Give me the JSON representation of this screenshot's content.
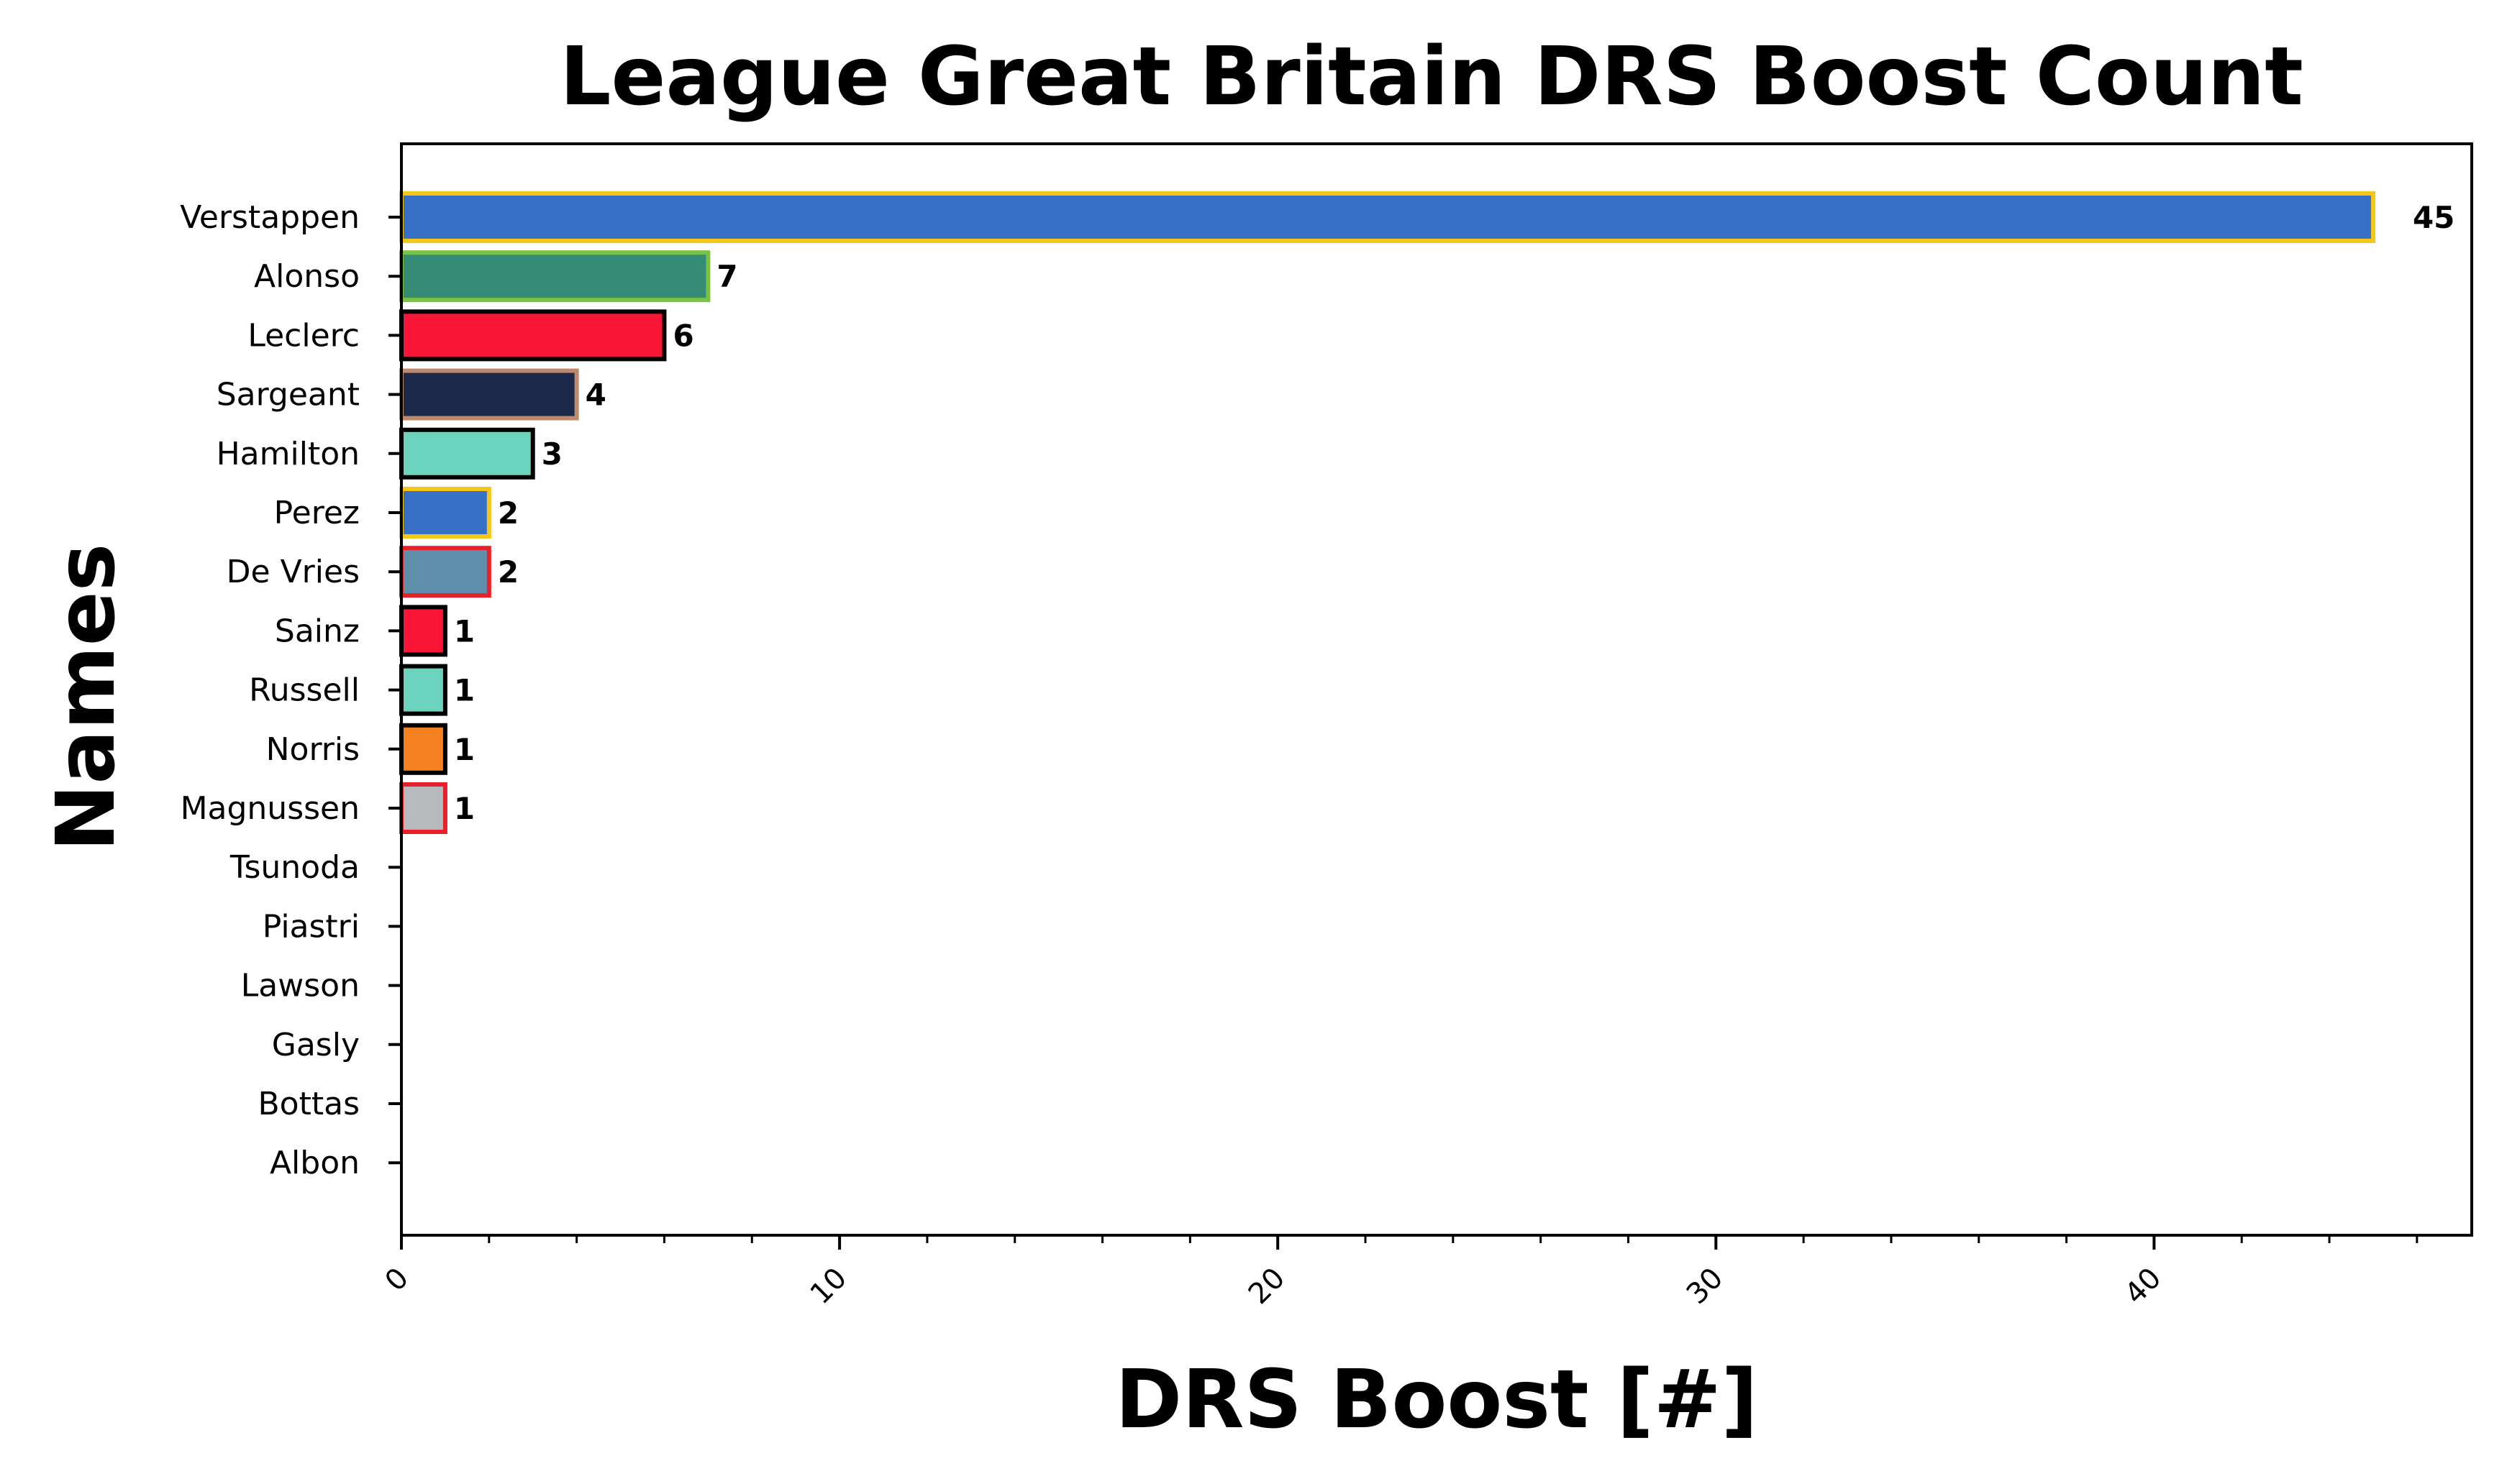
{
  "chart_data": {
    "type": "bar",
    "orientation": "horizontal",
    "title": "League Great Britain DRS Boost Count",
    "xlabel": "DRS Boost [#]",
    "ylabel": "Names",
    "xlim": [
      0,
      47.25
    ],
    "xticks": [
      "0",
      "10",
      "20",
      "30",
      "40"
    ],
    "grid": false,
    "categories": [
      "Verstappen",
      "Alonso",
      "Leclerc",
      "Sargeant",
      "Hamilton",
      "Perez",
      "De Vries",
      "Sainz",
      "Russell",
      "Norris",
      "Magnussen",
      "Tsunoda",
      "Piastri",
      "Lawson",
      "Gasly",
      "Bottas",
      "Albon"
    ],
    "values": [
      45,
      7,
      6,
      4,
      3,
      2,
      2,
      1,
      1,
      1,
      1,
      0,
      0,
      0,
      0,
      0,
      0
    ],
    "value_labels": [
      "45",
      "7",
      "6",
      "4",
      "3",
      "2",
      "2",
      "1",
      "1",
      "1",
      "1",
      "",
      "",
      "",
      "",
      "",
      ""
    ],
    "fill_colors": [
      "#3671C6",
      "#358C75",
      "#F91536",
      "#1B2A4A",
      "#6CD3BF",
      "#3671C6",
      "#5E8FAA",
      "#F91536",
      "#6CD3BF",
      "#F58020",
      "#B6BABD",
      "#2B4562",
      "#F58020",
      "#2B4562",
      "#2293D1",
      "#C92D4B",
      "#37BEDD"
    ],
    "edge_colors": [
      "#F5C518",
      "#7CC242",
      "#000000",
      "#C08A6A",
      "#000000",
      "#F5C518",
      "#E8202A",
      "#000000",
      "#000000",
      "#000000",
      "#E8202A",
      "#000000",
      "#000000",
      "#000000",
      "#000000",
      "#000000",
      "#000000"
    ]
  }
}
